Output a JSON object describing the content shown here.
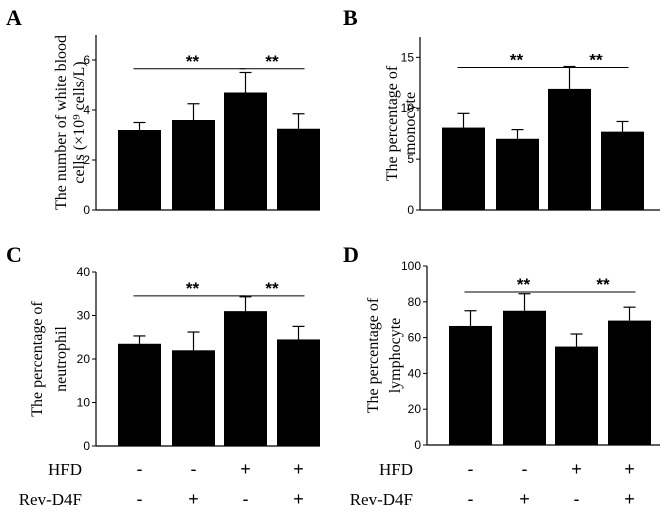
{
  "chart_data": [
    {
      "type": "bar",
      "panel": "A",
      "ylabel_lines": [
        "The number of white blood",
        "cells (×10⁹ cells/L)"
      ],
      "yticks": [
        0,
        2,
        4,
        6
      ],
      "ylim": [
        0,
        7
      ],
      "values": [
        3.2,
        3.6,
        4.7,
        3.25
      ],
      "errors": [
        0.3,
        0.65,
        0.8,
        0.6
      ],
      "significance": [
        {
          "from": 0,
          "to": 2,
          "y": 5.65,
          "label": "**"
        },
        {
          "from": 2,
          "to": 3,
          "y": 5.65,
          "label": "**"
        }
      ]
    },
    {
      "type": "bar",
      "panel": "B",
      "ylabel_lines": [
        "The percentage of",
        "monocyte"
      ],
      "yticks": [
        0,
        5,
        10,
        15
      ],
      "ylim": [
        0,
        17
      ],
      "values": [
        8.1,
        7.0,
        11.9,
        7.7
      ],
      "errors": [
        1.4,
        0.9,
        2.2,
        1.0
      ],
      "significance": [
        {
          "from": 0,
          "to": 2,
          "y": 14.0,
          "label": "**"
        },
        {
          "from": 2,
          "to": 3,
          "y": 14.0,
          "label": "**"
        }
      ]
    },
    {
      "type": "bar",
      "panel": "C",
      "ylabel_lines": [
        "The percentage of",
        "neutrophil"
      ],
      "yticks": [
        0,
        10,
        20,
        30,
        40
      ],
      "ylim": [
        0,
        40
      ],
      "values": [
        23.5,
        22.0,
        31.0,
        24.5
      ],
      "errors": [
        1.8,
        4.2,
        3.3,
        3.0
      ],
      "significance": [
        {
          "from": 0,
          "to": 2,
          "y": 34.5,
          "label": "**"
        },
        {
          "from": 2,
          "to": 3,
          "y": 34.5,
          "label": "**"
        }
      ]
    },
    {
      "type": "bar",
      "panel": "D",
      "ylabel_lines": [
        "The percentage of",
        "lymphocyte"
      ],
      "yticks": [
        0,
        20,
        40,
        60,
        80,
        100
      ],
      "ylim": [
        0,
        100
      ],
      "values": [
        66.5,
        75.0,
        55.0,
        69.5
      ],
      "errors": [
        8.5,
        9.5,
        7.0,
        7.5
      ],
      "significance": [
        {
          "from": 0,
          "to": 2,
          "y": 85.5,
          "label": "**"
        },
        {
          "from": 2,
          "to": 3,
          "y": 85.5,
          "label": "**"
        }
      ]
    }
  ],
  "treatments": [
    {
      "label": "HFD",
      "signs": [
        "-",
        "-",
        "+",
        "+"
      ]
    },
    {
      "label": "Rev-D4F",
      "signs": [
        "-",
        "+",
        "-",
        "+"
      ]
    }
  ],
  "colors": {
    "bar": "#000000",
    "axis": "#000000"
  }
}
